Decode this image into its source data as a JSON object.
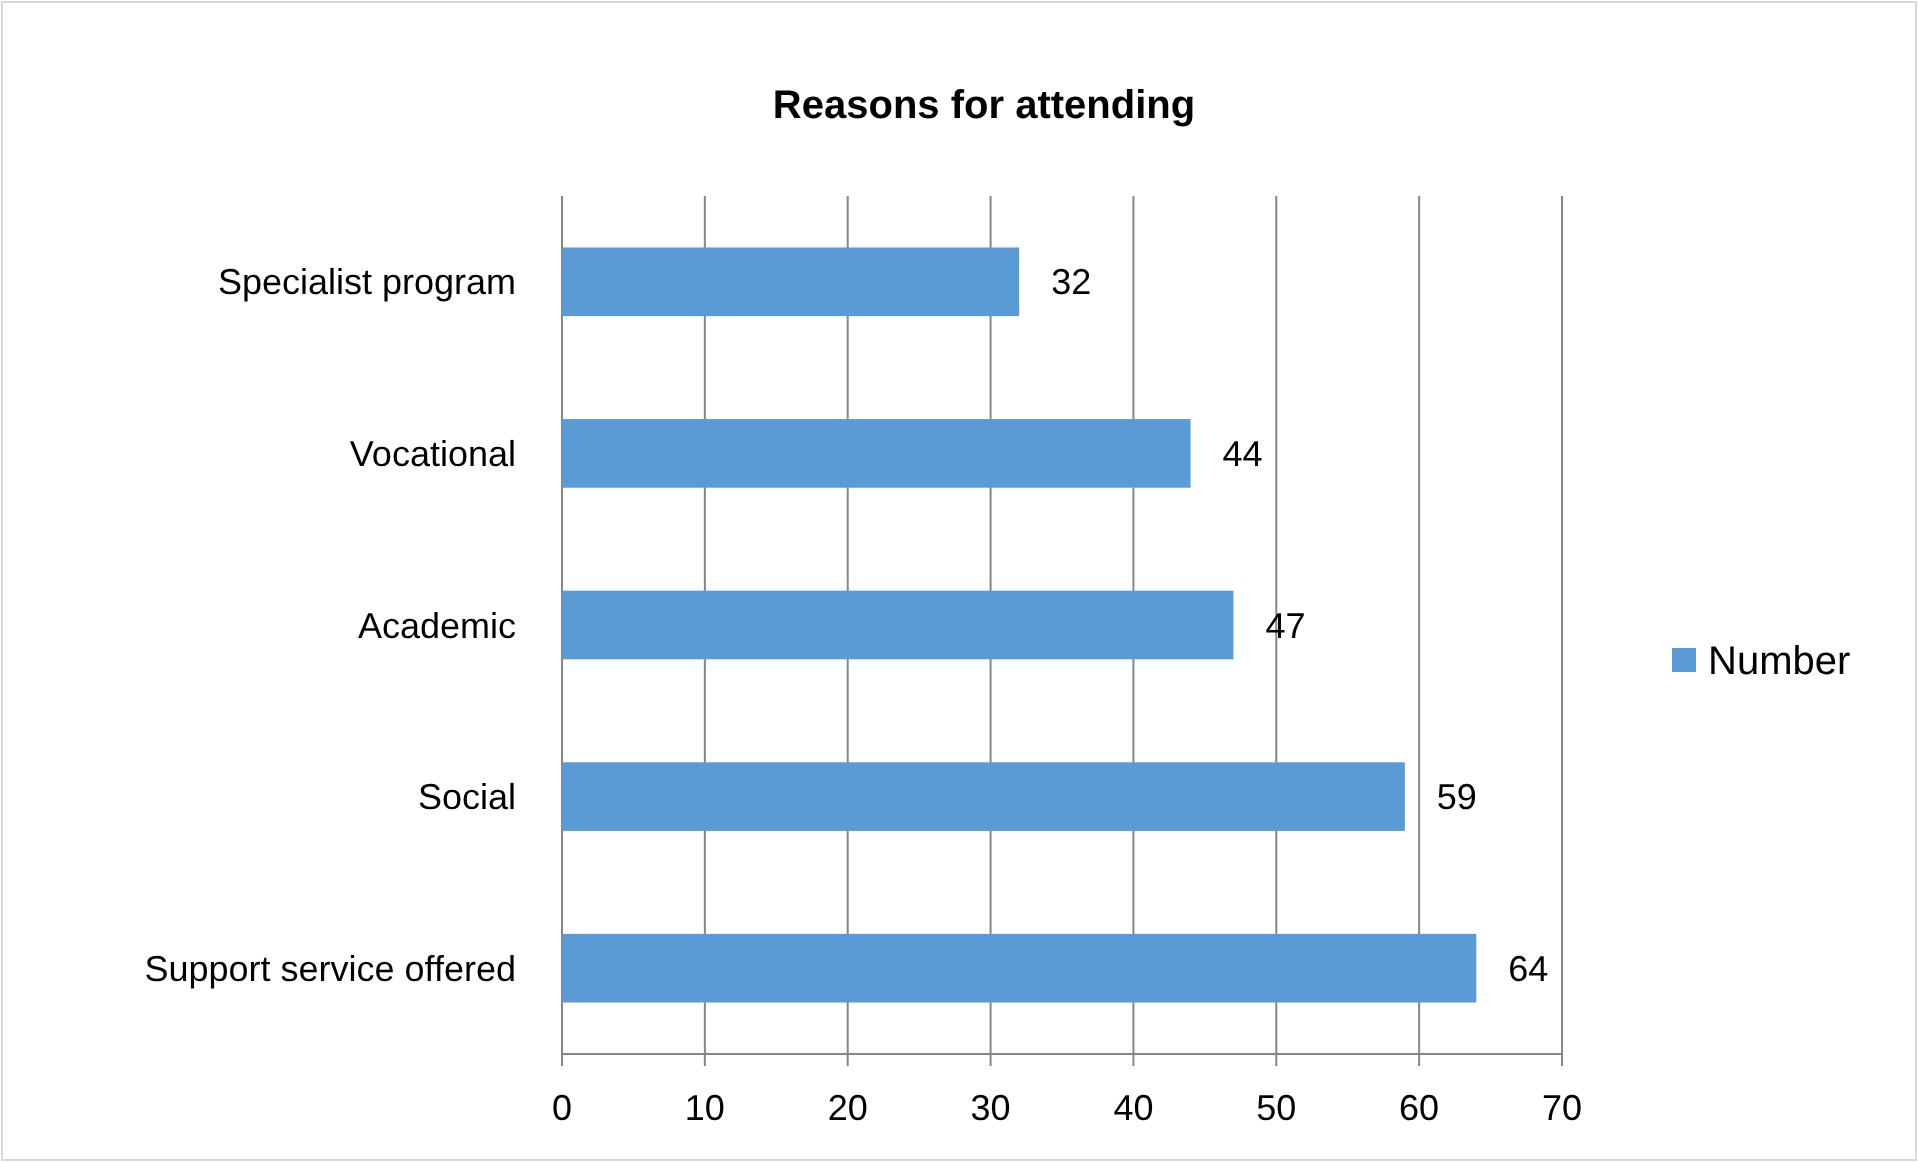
{
  "chart_data": {
    "type": "bar",
    "orientation": "horizontal",
    "title": "Reasons for attending",
    "categories": [
      "Specialist program",
      "Vocational",
      "Academic",
      "Social",
      "Support service offered"
    ],
    "series": [
      {
        "name": "Number",
        "color": "#5b9bd5",
        "values": [
          32,
          44,
          47,
          59,
          64
        ]
      }
    ],
    "xlim": [
      0,
      70
    ],
    "xticks": [
      0,
      10,
      20,
      30,
      40,
      50,
      60,
      70
    ],
    "grid": "x",
    "legend": "right",
    "data_labels": true
  }
}
